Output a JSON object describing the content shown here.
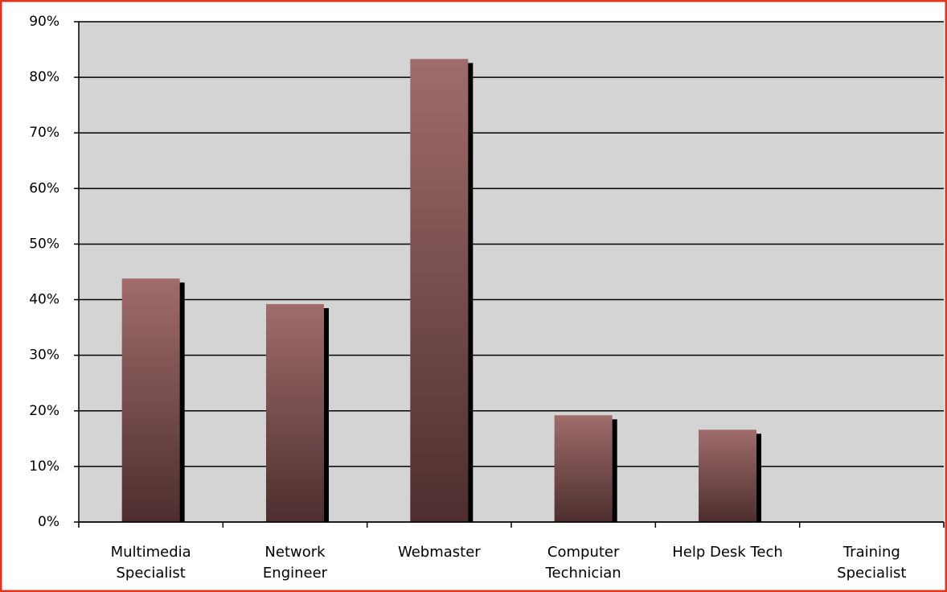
{
  "chart_data": {
    "type": "bar",
    "categories": [
      "Multimedia\nSpecialist",
      "Network\nEngineer",
      "Webmaster",
      "Computer\nTechnician",
      "Help Desk Tech",
      "Training\nSpecialist"
    ],
    "values": [
      43.8,
      39.2,
      83.3,
      19.2,
      16.6,
      0
    ],
    "color": "#8a5a5a",
    "ylim": [
      0,
      90
    ],
    "yticks": [
      {
        "value": 0,
        "label": "0%"
      },
      {
        "value": 10,
        "label": "10%"
      },
      {
        "value": 20,
        "label": "20%"
      },
      {
        "value": 30,
        "label": "30%"
      },
      {
        "value": 40,
        "label": "40%"
      },
      {
        "value": 50,
        "label": "50%"
      },
      {
        "value": 60,
        "label": "60%"
      },
      {
        "value": 70,
        "label": "70%"
      },
      {
        "value": 80,
        "label": "80%"
      },
      {
        "value": 90,
        "label": "90%"
      }
    ],
    "grid": true
  }
}
